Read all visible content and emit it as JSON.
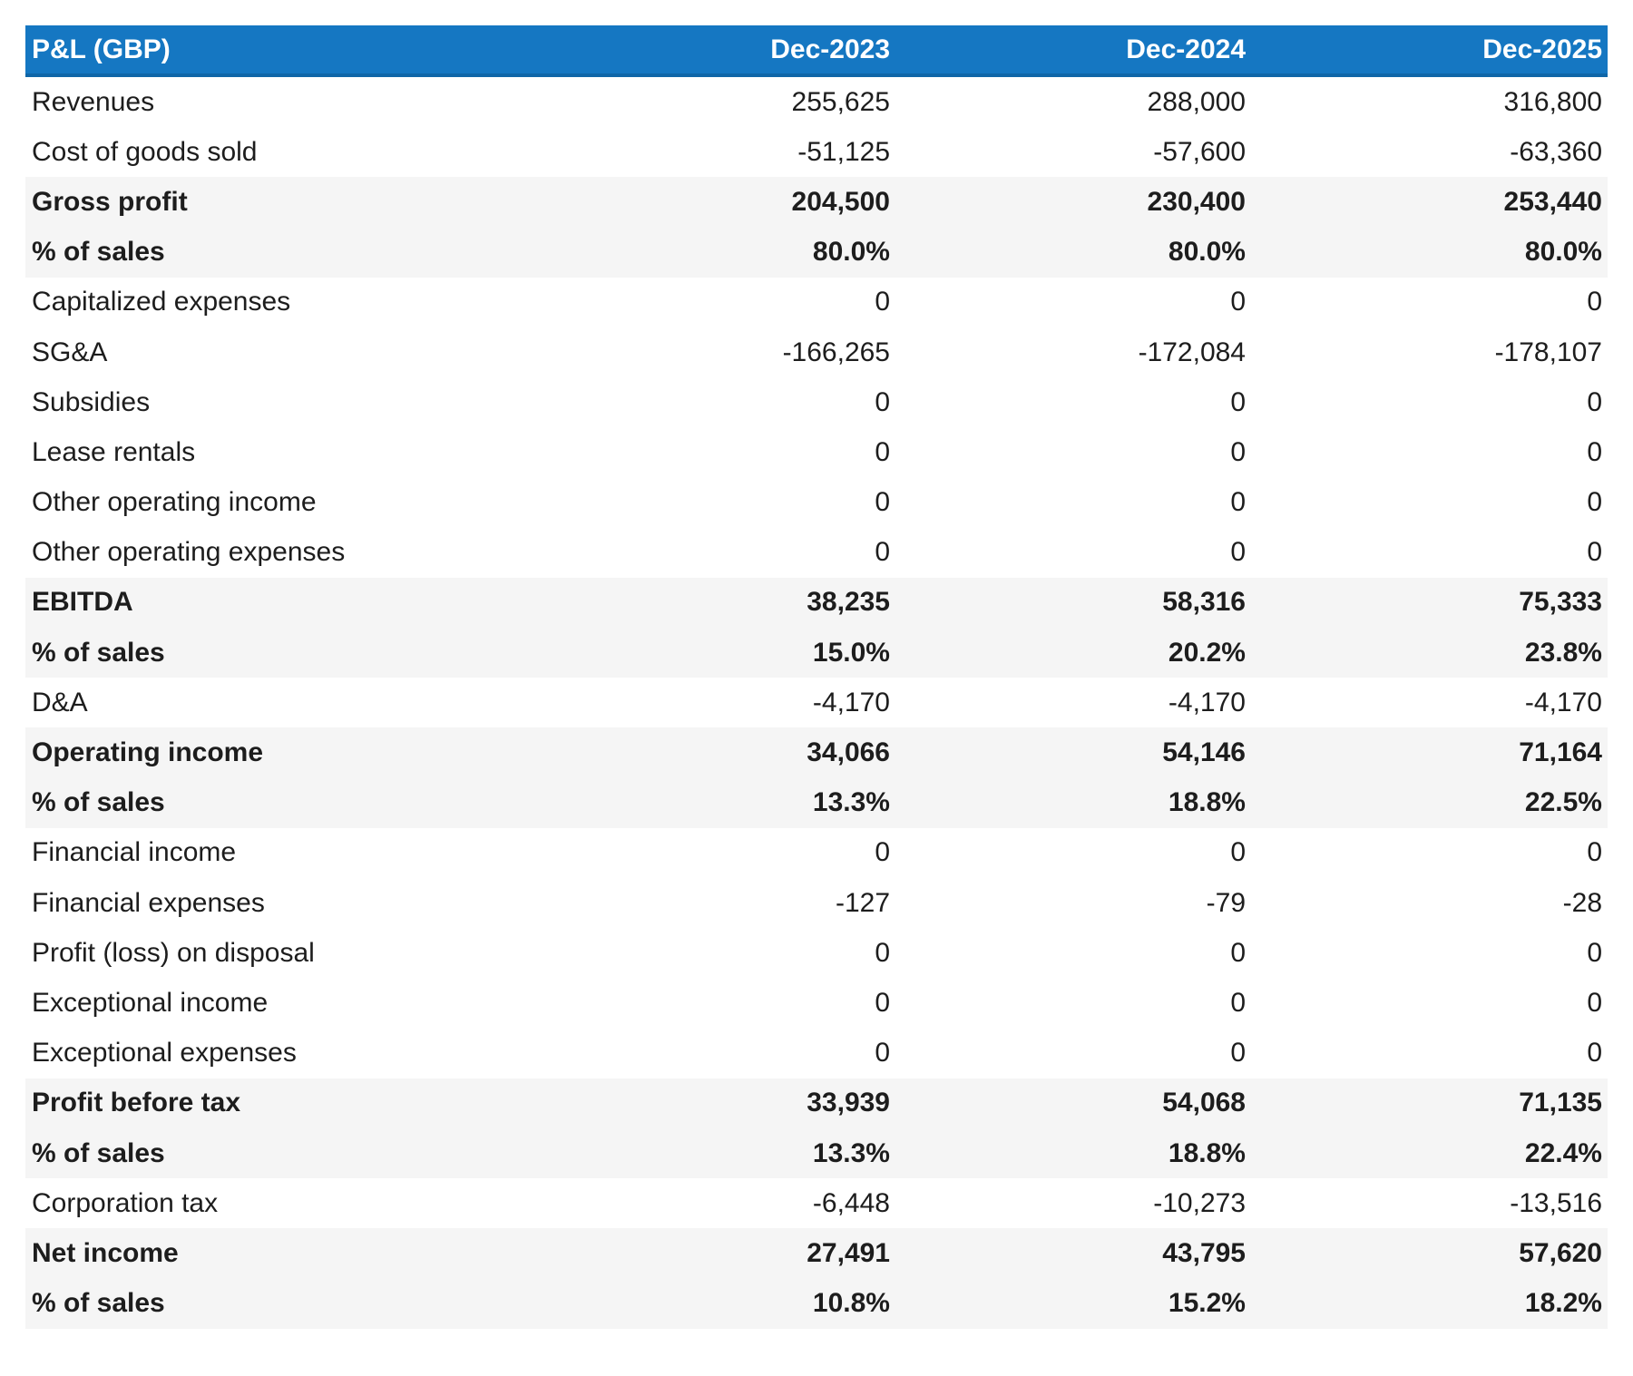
{
  "table": {
    "title_column_header": "P&L (GBP)",
    "column_headers": [
      "Dec-2023",
      "Dec-2024",
      "Dec-2025"
    ],
    "rows": [
      {
        "label": "Revenues",
        "values": [
          "255,625",
          "288,000",
          "316,800"
        ],
        "style": "normal"
      },
      {
        "label": "Cost of goods sold",
        "values": [
          "-51,125",
          "-57,600",
          "-63,360"
        ],
        "style": "normal"
      },
      {
        "label": "Gross profit",
        "values": [
          "204,500",
          "230,400",
          "253,440"
        ],
        "style": "summary"
      },
      {
        "label": "% of sales",
        "values": [
          "80.0%",
          "80.0%",
          "80.0%"
        ],
        "style": "summary"
      },
      {
        "label": "Capitalized expenses",
        "values": [
          "0",
          "0",
          "0"
        ],
        "style": "normal"
      },
      {
        "label": "SG&A",
        "values": [
          "-166,265",
          "-172,084",
          "-178,107"
        ],
        "style": "normal"
      },
      {
        "label": "Subsidies",
        "values": [
          "0",
          "0",
          "0"
        ],
        "style": "normal"
      },
      {
        "label": "Lease rentals",
        "values": [
          "0",
          "0",
          "0"
        ],
        "style": "normal"
      },
      {
        "label": "Other operating income",
        "values": [
          "0",
          "0",
          "0"
        ],
        "style": "normal"
      },
      {
        "label": "Other operating expenses",
        "values": [
          "0",
          "0",
          "0"
        ],
        "style": "normal"
      },
      {
        "label": "EBITDA",
        "values": [
          "38,235",
          "58,316",
          "75,333"
        ],
        "style": "summary"
      },
      {
        "label": "% of sales",
        "values": [
          "15.0%",
          "20.2%",
          "23.8%"
        ],
        "style": "summary"
      },
      {
        "label": "D&A",
        "values": [
          "-4,170",
          "-4,170",
          "-4,170"
        ],
        "style": "normal"
      },
      {
        "label": "Operating income",
        "values": [
          "34,066",
          "54,146",
          "71,164"
        ],
        "style": "summary"
      },
      {
        "label": "% of sales",
        "values": [
          "13.3%",
          "18.8%",
          "22.5%"
        ],
        "style": "summary"
      },
      {
        "label": "Financial income",
        "values": [
          "0",
          "0",
          "0"
        ],
        "style": "normal"
      },
      {
        "label": "Financial expenses",
        "values": [
          "-127",
          "-79",
          "-28"
        ],
        "style": "normal"
      },
      {
        "label": "Profit (loss) on disposal",
        "values": [
          "0",
          "0",
          "0"
        ],
        "style": "normal"
      },
      {
        "label": "Exceptional income",
        "values": [
          "0",
          "0",
          "0"
        ],
        "style": "normal"
      },
      {
        "label": "Exceptional expenses",
        "values": [
          "0",
          "0",
          "0"
        ],
        "style": "normal"
      },
      {
        "label": "Profit before tax",
        "values": [
          "33,939",
          "54,068",
          "71,135"
        ],
        "style": "summary"
      },
      {
        "label": "% of sales",
        "values": [
          "13.3%",
          "18.8%",
          "22.4%"
        ],
        "style": "summary"
      },
      {
        "label": "Corporation tax",
        "values": [
          "-6,448",
          "-10,273",
          "-13,516"
        ],
        "style": "normal"
      },
      {
        "label": "Net income",
        "values": [
          "27,491",
          "43,795",
          "57,620"
        ],
        "style": "summary"
      },
      {
        "label": "% of sales",
        "values": [
          "10.8%",
          "15.2%",
          "18.2%"
        ],
        "style": "summary"
      }
    ],
    "colors": {
      "header_bg": "#1577C2",
      "header_edge": "#0F66A8",
      "header_text": "#FFFFFF",
      "summary_row_bg": "#F5F5F5",
      "normal_row_bg": "#FFFFFF",
      "body_text": "#1D1D1D"
    }
  },
  "chart_data": {
    "type": "table",
    "title": "P&L (GBP)",
    "columns": [
      "Dec-2023",
      "Dec-2024",
      "Dec-2025"
    ],
    "rows": [
      {
        "label": "Revenues",
        "unit": "GBP",
        "values": [
          255625,
          288000,
          316800
        ]
      },
      {
        "label": "Cost of goods sold",
        "unit": "GBP",
        "values": [
          -51125,
          -57600,
          -63360
        ]
      },
      {
        "label": "Gross profit",
        "unit": "GBP",
        "values": [
          204500,
          230400,
          253440
        ],
        "emphasis": true
      },
      {
        "label": "% of sales",
        "unit": "%",
        "values": [
          80.0,
          80.0,
          80.0
        ],
        "emphasis": true
      },
      {
        "label": "Capitalized expenses",
        "unit": "GBP",
        "values": [
          0,
          0,
          0
        ]
      },
      {
        "label": "SG&A",
        "unit": "GBP",
        "values": [
          -166265,
          -172084,
          -178107
        ]
      },
      {
        "label": "Subsidies",
        "unit": "GBP",
        "values": [
          0,
          0,
          0
        ]
      },
      {
        "label": "Lease rentals",
        "unit": "GBP",
        "values": [
          0,
          0,
          0
        ]
      },
      {
        "label": "Other operating income",
        "unit": "GBP",
        "values": [
          0,
          0,
          0
        ]
      },
      {
        "label": "Other operating expenses",
        "unit": "GBP",
        "values": [
          0,
          0,
          0
        ]
      },
      {
        "label": "EBITDA",
        "unit": "GBP",
        "values": [
          38235,
          58316,
          75333
        ],
        "emphasis": true
      },
      {
        "label": "% of sales",
        "unit": "%",
        "values": [
          15.0,
          20.2,
          23.8
        ],
        "emphasis": true
      },
      {
        "label": "D&A",
        "unit": "GBP",
        "values": [
          -4170,
          -4170,
          -4170
        ]
      },
      {
        "label": "Operating income",
        "unit": "GBP",
        "values": [
          34066,
          54146,
          71164
        ],
        "emphasis": true
      },
      {
        "label": "% of sales",
        "unit": "%",
        "values": [
          13.3,
          18.8,
          22.5
        ],
        "emphasis": true
      },
      {
        "label": "Financial income",
        "unit": "GBP",
        "values": [
          0,
          0,
          0
        ]
      },
      {
        "label": "Financial expenses",
        "unit": "GBP",
        "values": [
          -127,
          -79,
          -28
        ]
      },
      {
        "label": "Profit (loss) on disposal",
        "unit": "GBP",
        "values": [
          0,
          0,
          0
        ]
      },
      {
        "label": "Exceptional income",
        "unit": "GBP",
        "values": [
          0,
          0,
          0
        ]
      },
      {
        "label": "Exceptional expenses",
        "unit": "GBP",
        "values": [
          0,
          0,
          0
        ]
      },
      {
        "label": "Profit before tax",
        "unit": "GBP",
        "values": [
          33939,
          54068,
          71135
        ],
        "emphasis": true
      },
      {
        "label": "% of sales",
        "unit": "%",
        "values": [
          13.3,
          18.8,
          22.4
        ],
        "emphasis": true
      },
      {
        "label": "Corporation tax",
        "unit": "GBP",
        "values": [
          -6448,
          -10273,
          -13516
        ]
      },
      {
        "label": "Net income",
        "unit": "GBP",
        "values": [
          27491,
          43795,
          57620
        ],
        "emphasis": true
      },
      {
        "label": "% of sales",
        "unit": "%",
        "values": [
          10.8,
          15.2,
          18.2
        ],
        "emphasis": true
      }
    ]
  }
}
